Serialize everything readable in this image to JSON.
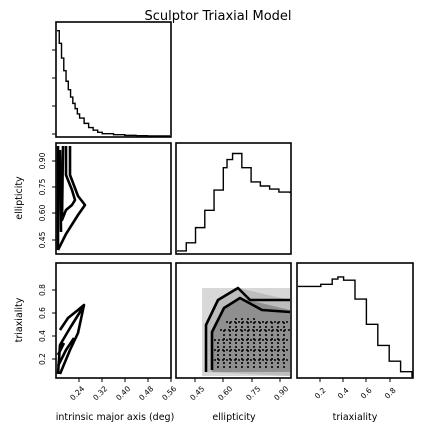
{
  "chart_data": {
    "type": "corner",
    "title": "Sculptor Triaxial Model",
    "parameters": [
      "intrinsic major axis (deg)",
      "ellipticity",
      "triaxiality"
    ],
    "axis_labels": {
      "x": [
        "intrinsic major axis (deg)",
        "ellipticity",
        "triaxiality"
      ],
      "y_row2": "ellipticity",
      "y_row3": "triaxiality"
    },
    "ranges": {
      "intrinsic_major_axis": [
        0.16,
        0.56
      ],
      "ellipticity": [
        0.35,
        0.96
      ],
      "triaxiality": [
        0.0,
        1.0
      ]
    },
    "ticks": {
      "intrinsic_major_axis": [
        "0.24",
        "0.32",
        "0.40",
        "0.48",
        "0.56"
      ],
      "ellipticity_x": [
        "0.45",
        "0.60",
        "0.75",
        "0.90"
      ],
      "ellipticity_y": [
        "0.45",
        "0.60",
        "0.75",
        "0.90"
      ],
      "triaxiality_x": [
        "0.2",
        "0.4",
        "0.6",
        "0.8"
      ],
      "triaxiality_y": [
        "0.2",
        "0.4",
        "0.6",
        "0.8"
      ]
    },
    "histograms": {
      "intrinsic_major_axis": {
        "x": [
          0.16,
          0.168,
          0.176,
          0.184,
          0.192,
          0.2,
          0.208,
          0.216,
          0.224,
          0.232,
          0.24,
          0.256,
          0.272,
          0.288,
          0.304,
          0.32,
          0.36,
          0.4,
          0.44,
          0.48,
          0.52,
          0.56
        ],
        "y": [
          1.0,
          0.88,
          0.74,
          0.62,
          0.52,
          0.44,
          0.37,
          0.31,
          0.26,
          0.21,
          0.17,
          0.12,
          0.08,
          0.055,
          0.035,
          0.022,
          0.012,
          0.006,
          0.003,
          0.001,
          0.0,
          0.0
        ]
      },
      "ellipticity": {
        "x": [
          0.35,
          0.4,
          0.45,
          0.5,
          0.55,
          0.6,
          0.62,
          0.65,
          0.7,
          0.75,
          0.8,
          0.85,
          0.9,
          0.96
        ],
        "y": [
          0.02,
          0.1,
          0.25,
          0.42,
          0.62,
          0.84,
          0.92,
          0.98,
          0.84,
          0.7,
          0.66,
          0.63,
          0.6,
          0.59
        ]
      },
      "triaxiality": {
        "x": [
          0.0,
          0.1,
          0.2,
          0.3,
          0.35,
          0.4,
          0.5,
          0.6,
          0.7,
          0.8,
          0.9,
          1.0
        ],
        "y": [
          0.86,
          0.86,
          0.88,
          0.93,
          0.95,
          0.92,
          0.74,
          0.5,
          0.3,
          0.15,
          0.05,
          0.0
        ]
      }
    },
    "contours_2d": [
      {
        "x_param": "intrinsic major axis (deg)",
        "y_param": "ellipticity",
        "style": "solid",
        "levels": 3
      },
      {
        "x_param": "intrinsic major axis (deg)",
        "y_param": "triaxiality",
        "style": "solid",
        "levels": 3
      },
      {
        "x_param": "ellipticity",
        "y_param": "triaxiality",
        "style": "filled-dense",
        "levels": 3
      }
    ],
    "grid": false,
    "legend": "none"
  }
}
